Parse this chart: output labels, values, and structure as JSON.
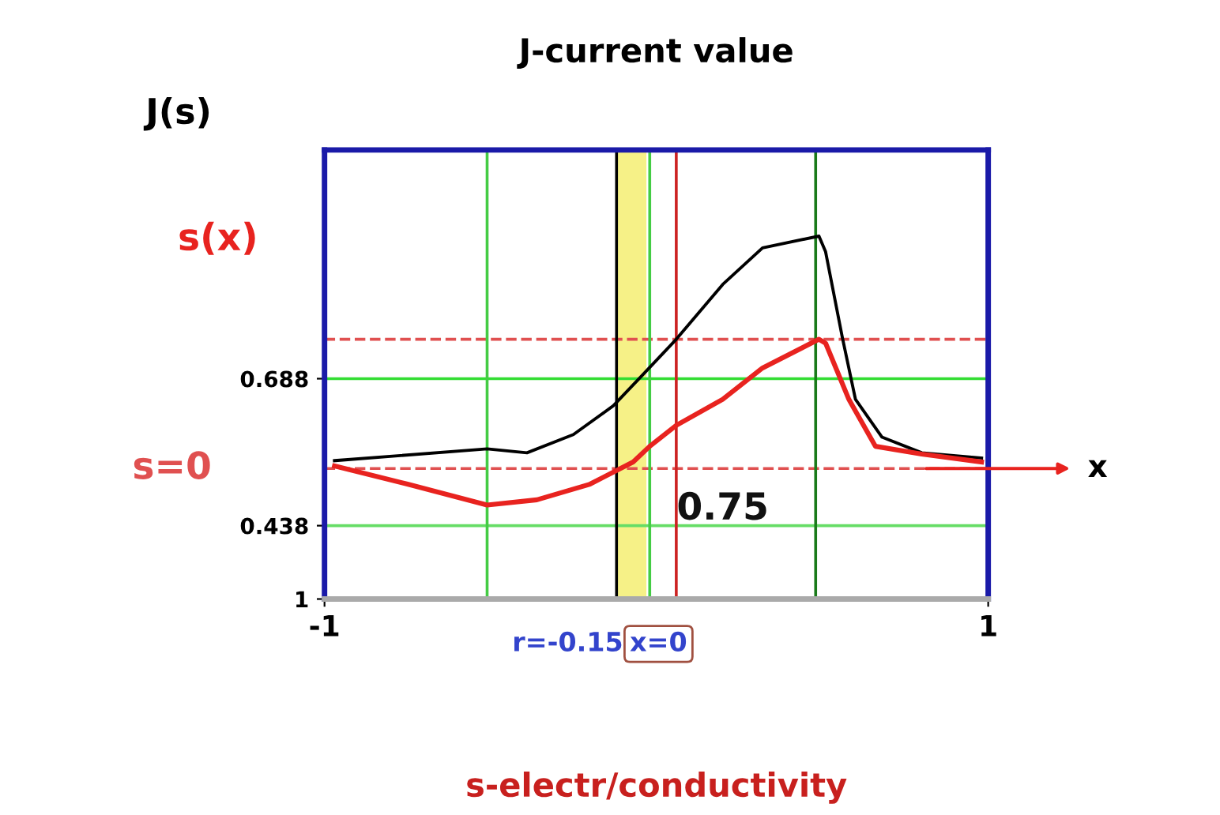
{
  "chart_data": {
    "type": "line",
    "title": "J-current value",
    "xlabel": "x",
    "xlim": [
      -1,
      1
    ],
    "ylim": [
      -1,
      2.44
    ],
    "xticks": [
      -1,
      1
    ],
    "yticks": [
      0.688,
      {
        "value": -0.438,
        "label": "0.438"
      },
      {
        "value": -1,
        "label": "1"
      }
    ],
    "series": [
      {
        "name": "J(s)",
        "color": "#000000",
        "x": [
          -0.97,
          -0.51,
          -0.39,
          -0.25,
          -0.13,
          -0.04,
          0.06,
          0.2,
          0.32,
          0.49,
          0.51,
          0.56,
          0.6,
          0.68,
          0.8,
          0.98
        ],
        "values": [
          0.06,
          0.15,
          0.12,
          0.26,
          0.48,
          0.72,
          0.99,
          1.41,
          1.69,
          1.78,
          1.66,
          1.01,
          0.53,
          0.24,
          0.12,
          0.08
        ]
      },
      {
        "name": "s(x)",
        "color": "#e8231f",
        "x": [
          -0.97,
          -0.75,
          -0.51,
          -0.36,
          -0.2,
          -0.07,
          -0.02,
          0.06,
          0.2,
          0.32,
          0.49,
          0.51,
          0.58,
          0.66,
          0.8,
          0.98
        ],
        "values": [
          0.02,
          -0.12,
          -0.28,
          -0.24,
          -0.12,
          0.05,
          0.17,
          0.33,
          0.53,
          0.77,
          0.99,
          0.96,
          0.53,
          0.17,
          0.11,
          0.05
        ]
      }
    ],
    "ref_lines": [
      {
        "axis": "y",
        "value": 0,
        "label": "s=0",
        "color": "#e05050",
        "line_style": "dashed"
      },
      {
        "axis": "y",
        "value": 0.99,
        "color": "#e05050",
        "line_style": "dashed"
      },
      {
        "axis": "y",
        "value": 0.688,
        "color": "#33dd33"
      },
      {
        "axis": "y",
        "value": -0.438,
        "color": "#66dd66"
      },
      {
        "axis": "x",
        "value": -0.51,
        "color": "#44cc44"
      },
      {
        "axis": "x",
        "value": -0.12,
        "color": "#000000"
      },
      {
        "axis": "x",
        "value": -0.02,
        "color": "#44cc44"
      },
      {
        "axis": "x",
        "value": 0.06,
        "color": "#cc2222"
      },
      {
        "axis": "x",
        "value": 0.48,
        "color": "#1a7a1a"
      }
    ],
    "bands": [
      {
        "axis": "x",
        "from": -0.12,
        "to": -0.03,
        "color": "#f5f07a"
      }
    ],
    "annotations": [
      "0.75",
      "r=-0.15",
      "x=0",
      "s-electr/conductivity"
    ]
  }
}
